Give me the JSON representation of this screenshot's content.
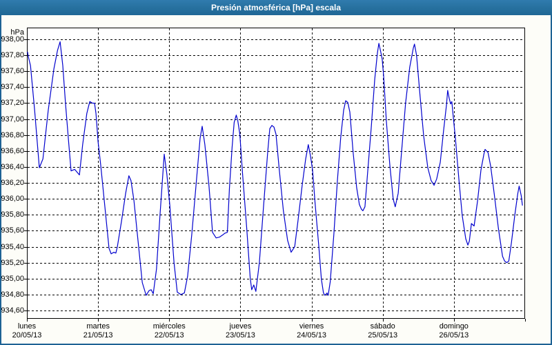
{
  "window": {
    "title": "Presión atmosférica [hPa] escala"
  },
  "colors": {
    "titlebar": "#27719f",
    "window_border": "#1d6294",
    "window_background": "#fdfdf8",
    "plot_background": "#ffffff",
    "grid": "#000000",
    "line": "#0000cd",
    "text": "#000000"
  },
  "chart_data": {
    "type": "line",
    "title": "Presión atmosférica [hPa] escala",
    "grid": "dashed",
    "legend_position": "none",
    "y_axis": {
      "unit_label": "hPa",
      "tick_step": 0.2,
      "ticks": [
        {
          "label": "938,00",
          "value": 938.0
        },
        {
          "label": "937,80",
          "value": 937.8
        },
        {
          "label": "937,60",
          "value": 937.6
        },
        {
          "label": "937,40",
          "value": 937.4
        },
        {
          "label": "937,20",
          "value": 937.2
        },
        {
          "label": "937,00",
          "value": 937.0
        },
        {
          "label": "936,80",
          "value": 936.8
        },
        {
          "label": "936,60",
          "value": 936.6
        },
        {
          "label": "936,40",
          "value": 936.4
        },
        {
          "label": "936,20",
          "value": 936.2
        },
        {
          "label": "936,00",
          "value": 936.0
        },
        {
          "label": "935,80",
          "value": 935.8
        },
        {
          "label": "935,60",
          "value": 935.6
        },
        {
          "label": "935,40",
          "value": 935.4
        },
        {
          "label": "935,20",
          "value": 935.2
        },
        {
          "label": "935,00",
          "value": 935.0
        },
        {
          "label": "934,80",
          "value": 934.8
        },
        {
          "label": "934,60",
          "value": 934.6
        }
      ]
    },
    "x_axis": {
      "days": [
        {
          "name": "lunes",
          "date": "20/05/13"
        },
        {
          "name": "martes",
          "date": "21/05/13"
        },
        {
          "name": "miércoles",
          "date": "22/05/13"
        },
        {
          "name": "jueves",
          "date": "23/05/13"
        },
        {
          "name": "viernes",
          "date": "24/05/13"
        },
        {
          "name": "sábado",
          "date": "25/05/13"
        },
        {
          "name": "domingo",
          "date": "26/05/13"
        }
      ],
      "hours_total": 168
    },
    "series": [
      {
        "name": "Presión atmosférica",
        "color": "#0000cd",
        "points": [
          [
            0.2,
            937.84
          ],
          [
            0.5,
            937.78
          ],
          [
            1.2,
            937.67
          ],
          [
            2.6,
            937.11
          ],
          [
            3.4,
            936.75
          ],
          [
            4.2,
            936.39
          ],
          [
            5.4,
            936.5
          ],
          [
            7.2,
            937.11
          ],
          [
            9.1,
            937.63
          ],
          [
            10.3,
            937.86
          ],
          [
            11.2,
            937.97
          ],
          [
            12.1,
            937.67
          ],
          [
            13.0,
            937.2
          ],
          [
            14.0,
            936.74
          ],
          [
            14.9,
            936.35
          ],
          [
            16.1,
            936.37
          ],
          [
            17.0,
            936.33
          ],
          [
            17.7,
            936.3
          ],
          [
            18.8,
            936.68
          ],
          [
            20.2,
            937.07
          ],
          [
            21.2,
            937.22
          ],
          [
            22.1,
            937.2
          ],
          [
            22.8,
            937.2
          ],
          [
            23.3,
            937.07
          ],
          [
            24.0,
            936.72
          ],
          [
            24.9,
            936.42
          ],
          [
            26.3,
            935.9
          ],
          [
            27.7,
            935.38
          ],
          [
            28.4,
            935.31
          ],
          [
            29.3,
            935.33
          ],
          [
            30.0,
            935.32
          ],
          [
            30.5,
            935.4
          ],
          [
            31.9,
            935.72
          ],
          [
            33.3,
            936.07
          ],
          [
            34.4,
            936.29
          ],
          [
            35.1,
            936.23
          ],
          [
            36.1,
            935.98
          ],
          [
            37.5,
            935.46
          ],
          [
            38.9,
            934.95
          ],
          [
            40.2,
            934.79
          ],
          [
            41.2,
            934.85
          ],
          [
            41.9,
            934.86
          ],
          [
            42.6,
            934.81
          ],
          [
            43.7,
            935.12
          ],
          [
            44.9,
            935.81
          ],
          [
            46.3,
            936.56
          ],
          [
            47.2,
            936.31
          ],
          [
            48.2,
            935.92
          ],
          [
            49.6,
            935.2
          ],
          [
            50.7,
            934.83
          ],
          [
            51.9,
            934.8
          ],
          [
            53.1,
            934.82
          ],
          [
            54.2,
            935.03
          ],
          [
            55.6,
            935.55
          ],
          [
            57.2,
            936.24
          ],
          [
            58.4,
            936.76
          ],
          [
            59.1,
            936.91
          ],
          [
            60.0,
            936.68
          ],
          [
            61.4,
            936.16
          ],
          [
            62.6,
            935.58
          ],
          [
            63.8,
            935.51
          ],
          [
            64.9,
            935.52
          ],
          [
            66.1,
            935.55
          ],
          [
            66.8,
            935.57
          ],
          [
            67.6,
            935.58
          ],
          [
            68.3,
            936.13
          ],
          [
            69.2,
            936.65
          ],
          [
            69.9,
            936.96
          ],
          [
            70.6,
            937.05
          ],
          [
            71.1,
            936.98
          ],
          [
            71.8,
            936.81
          ],
          [
            72.7,
            936.33
          ],
          [
            74.1,
            935.64
          ],
          [
            75.3,
            935.01
          ],
          [
            75.8,
            934.86
          ],
          [
            76.5,
            934.92
          ],
          [
            77.2,
            934.84
          ],
          [
            78.4,
            935.2
          ],
          [
            79.8,
            935.9
          ],
          [
            81.2,
            936.59
          ],
          [
            81.9,
            936.88
          ],
          [
            82.6,
            936.92
          ],
          [
            83.3,
            936.9
          ],
          [
            84.0,
            936.81
          ],
          [
            85.1,
            936.37
          ],
          [
            86.5,
            935.85
          ],
          [
            87.9,
            935.48
          ],
          [
            89.1,
            935.33
          ],
          [
            90.3,
            935.4
          ],
          [
            91.4,
            935.72
          ],
          [
            92.8,
            936.16
          ],
          [
            94.0,
            936.5
          ],
          [
            94.9,
            936.68
          ],
          [
            95.6,
            936.54
          ],
          [
            96.3,
            936.37
          ],
          [
            97.2,
            935.94
          ],
          [
            98.4,
            935.42
          ],
          [
            99.3,
            934.99
          ],
          [
            100.0,
            934.82
          ],
          [
            100.5,
            934.79
          ],
          [
            101.2,
            934.82
          ],
          [
            101.6,
            934.79
          ],
          [
            102.3,
            934.96
          ],
          [
            103.5,
            935.55
          ],
          [
            104.7,
            936.23
          ],
          [
            105.8,
            936.76
          ],
          [
            106.8,
            937.11
          ],
          [
            107.5,
            937.23
          ],
          [
            108.2,
            937.21
          ],
          [
            108.9,
            937.09
          ],
          [
            110.0,
            936.59
          ],
          [
            111.2,
            936.14
          ],
          [
            112.1,
            935.93
          ],
          [
            112.8,
            935.87
          ],
          [
            113.3,
            935.85
          ],
          [
            114.0,
            935.9
          ],
          [
            114.9,
            936.33
          ],
          [
            116.1,
            936.89
          ],
          [
            117.3,
            937.5
          ],
          [
            118.2,
            937.83
          ],
          [
            118.7,
            937.95
          ],
          [
            119.4,
            937.83
          ],
          [
            119.8,
            937.75
          ],
          [
            120.3,
            937.54
          ],
          [
            121.2,
            936.98
          ],
          [
            122.4,
            936.42
          ],
          [
            123.5,
            936.0
          ],
          [
            124.2,
            935.9
          ],
          [
            125.2,
            936.07
          ],
          [
            126.3,
            936.57
          ],
          [
            127.7,
            937.2
          ],
          [
            129.1,
            937.65
          ],
          [
            130.3,
            937.89
          ],
          [
            130.7,
            937.94
          ],
          [
            131.4,
            937.8
          ],
          [
            132.6,
            937.28
          ],
          [
            133.8,
            936.79
          ],
          [
            135.2,
            936.39
          ],
          [
            136.3,
            936.23
          ],
          [
            137.3,
            936.17
          ],
          [
            138.2,
            936.25
          ],
          [
            139.4,
            936.46
          ],
          [
            140.5,
            936.85
          ],
          [
            141.5,
            937.18
          ],
          [
            141.9,
            937.36
          ],
          [
            142.4,
            937.26
          ],
          [
            142.9,
            937.19
          ],
          [
            143.3,
            937.22
          ],
          [
            143.8,
            937.02
          ],
          [
            144.5,
            936.76
          ],
          [
            145.7,
            936.23
          ],
          [
            146.8,
            935.79
          ],
          [
            148.0,
            935.5
          ],
          [
            148.7,
            935.42
          ],
          [
            149.2,
            935.47
          ],
          [
            149.9,
            935.69
          ],
          [
            150.8,
            935.66
          ],
          [
            152.0,
            935.98
          ],
          [
            153.1,
            936.36
          ],
          [
            154.1,
            936.56
          ],
          [
            154.5,
            936.62
          ],
          [
            155.5,
            936.58
          ],
          [
            156.4,
            936.41
          ],
          [
            157.6,
            936.06
          ],
          [
            159.0,
            935.63
          ],
          [
            160.4,
            935.28
          ],
          [
            161.1,
            935.22
          ],
          [
            161.8,
            935.2
          ],
          [
            162.5,
            935.22
          ],
          [
            163.4,
            935.45
          ],
          [
            164.5,
            935.79
          ],
          [
            165.5,
            936.06
          ],
          [
            166.0,
            936.16
          ],
          [
            166.7,
            936.04
          ],
          [
            167.1,
            935.92
          ]
        ]
      }
    ]
  }
}
